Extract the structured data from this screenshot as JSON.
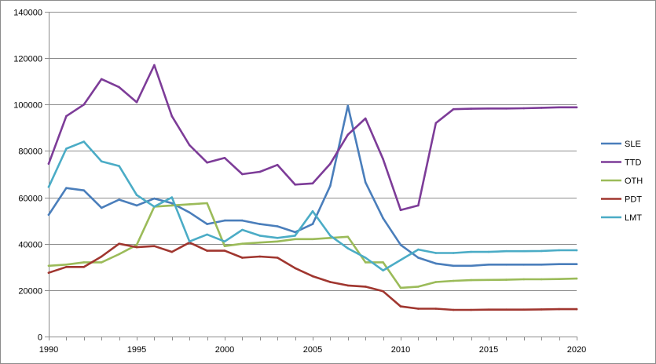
{
  "chart_data": {
    "type": "line",
    "title": "",
    "xlabel": "",
    "ylabel": "",
    "x": [
      1990,
      1991,
      1992,
      1993,
      1994,
      1995,
      1996,
      1997,
      1998,
      1999,
      2000,
      2001,
      2002,
      2003,
      2004,
      2005,
      2006,
      2007,
      2008,
      2009,
      2010,
      2011,
      2012,
      2013,
      2014,
      2015,
      2016,
      2017,
      2018,
      2019,
      2020
    ],
    "xlim": [
      1990,
      2020
    ],
    "ylim": [
      0,
      140000
    ],
    "xticks": [
      "1990",
      "1995",
      "2000",
      "2005",
      "2010",
      "2015",
      "2020"
    ],
    "yticks": [
      "0",
      "20000",
      "40000",
      "60000",
      "80000",
      "100000",
      "120000",
      "140000"
    ],
    "grid": "horizontal",
    "legend_position": "right",
    "series": [
      {
        "name": "SLE",
        "color": "#4a7ebb",
        "values": [
          52500,
          64000,
          63000,
          55500,
          59000,
          56500,
          59500,
          57500,
          53500,
          48500,
          50000,
          50000,
          48500,
          47500,
          45000,
          48500,
          65000,
          99500,
          66500,
          51000,
          39500,
          34000,
          31500,
          30500,
          30500,
          31000,
          31000,
          31000,
          31000,
          31200,
          31200
        ]
      },
      {
        "name": "TTD",
        "color": "#7d3c98",
        "values": [
          74500,
          95000,
          100000,
          111000,
          107500,
          101000,
          117000,
          95000,
          82500,
          75000,
          77000,
          70000,
          71000,
          74000,
          65500,
          66000,
          74500,
          87000,
          94000,
          76500,
          54500,
          56500,
          92000,
          98000,
          98200,
          98300,
          98300,
          98400,
          98600,
          98800,
          98800
        ]
      },
      {
        "name": "OTH",
        "color": "#9bbb59",
        "values": [
          30500,
          31000,
          32000,
          32000,
          35500,
          39500,
          56000,
          56500,
          57000,
          57500,
          39000,
          40000,
          40500,
          41000,
          42000,
          42000,
          42500,
          43000,
          32000,
          32000,
          21000,
          21500,
          23500,
          24000,
          24300,
          24400,
          24500,
          24700,
          24700,
          24800,
          25000
        ]
      },
      {
        "name": "PDT",
        "color": "#a0362f",
        "values": [
          27500,
          30000,
          30000,
          34500,
          40000,
          38500,
          39000,
          36500,
          40500,
          37000,
          37000,
          34000,
          34500,
          34000,
          29500,
          26000,
          23500,
          22000,
          21500,
          19500,
          13000,
          12000,
          12000,
          11500,
          11500,
          11600,
          11600,
          11600,
          11700,
          11800,
          11800
        ]
      },
      {
        "name": "LMT",
        "color": "#4bacc6",
        "values": [
          64500,
          81000,
          84000,
          75500,
          73500,
          61000,
          56000,
          60000,
          41000,
          44000,
          41000,
          46000,
          43500,
          42500,
          43500,
          54000,
          43500,
          38000,
          34000,
          28500,
          33000,
          37500,
          36000,
          36000,
          36500,
          36500,
          36800,
          36800,
          36900,
          37200,
          37200
        ]
      }
    ]
  }
}
